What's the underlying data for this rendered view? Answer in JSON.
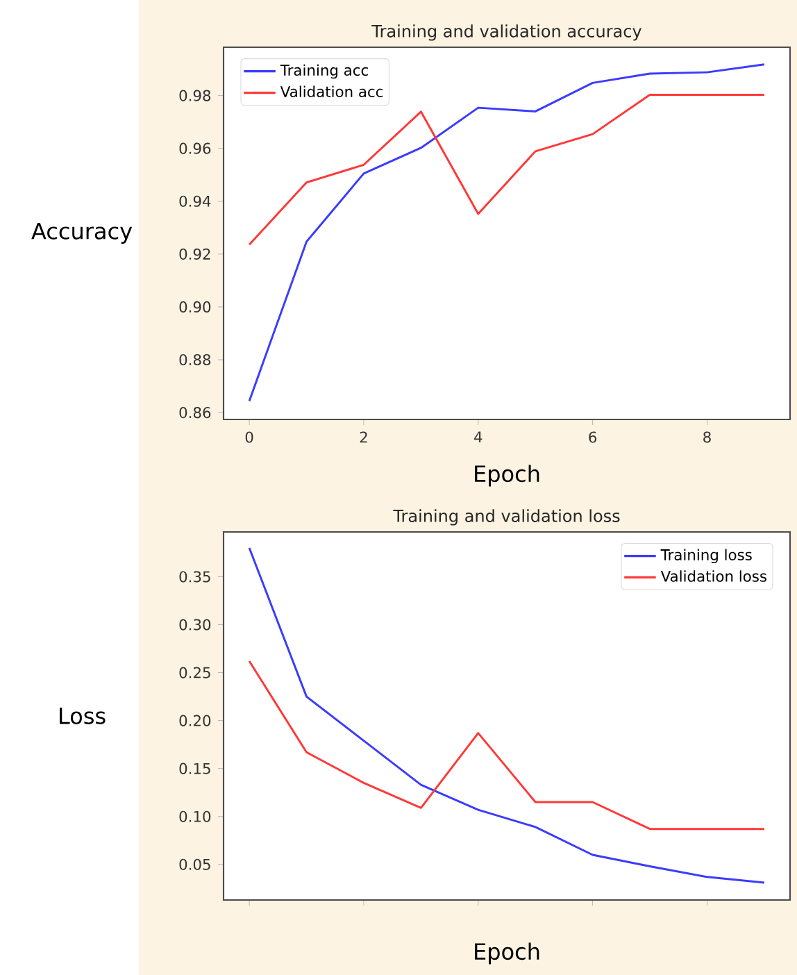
{
  "chart_data": [
    {
      "type": "line",
      "title": "Training and validation accuracy",
      "xlabel": "Epoch",
      "ylabel": "Accuracy",
      "x": [
        0,
        1,
        2,
        3,
        4,
        5,
        6,
        7,
        8,
        9
      ],
      "series": [
        {
          "name": "Training acc",
          "color": "#3b3bff",
          "values": [
            0.8644,
            0.9247,
            0.9505,
            0.9602,
            0.9754,
            0.974,
            0.9848,
            0.9883,
            0.9888,
            0.9918
          ]
        },
        {
          "name": "Validation acc",
          "color": "#ff3838",
          "values": [
            0.9236,
            0.9471,
            0.9538,
            0.9739,
            0.9352,
            0.9589,
            0.9654,
            0.9803,
            0.9803,
            0.9803
          ]
        }
      ],
      "xlim": [
        -0.45,
        9.45
      ],
      "ylim": [
        0.8574,
        0.9983
      ],
      "xticks": [
        0,
        2,
        4,
        6,
        8
      ],
      "yticks": [
        {
          "value": 0.86,
          "label": "0.86"
        },
        {
          "value": 0.88,
          "label": "0.88"
        },
        {
          "value": 0.9,
          "label": "0.90"
        },
        {
          "value": 0.92,
          "label": "0.92"
        },
        {
          "value": 0.94,
          "label": "0.94"
        },
        {
          "value": 0.96,
          "label": "0.96"
        },
        {
          "value": 0.98,
          "label": "0.98"
        }
      ],
      "legend": "top left"
    },
    {
      "type": "line",
      "title": "Training and validation loss",
      "xlabel": "Epoch",
      "ylabel": "Loss",
      "x": [
        0,
        1,
        2,
        3,
        4,
        5,
        6,
        7,
        8,
        9
      ],
      "series": [
        {
          "name": "Training loss",
          "color": "#3b3bff",
          "values": [
            0.38,
            0.225,
            0.179,
            0.133,
            0.107,
            0.089,
            0.06,
            0.048,
            0.037,
            0.031
          ]
        },
        {
          "name": "Validation loss",
          "color": "#ff3838",
          "values": [
            0.262,
            0.167,
            0.135,
            0.109,
            0.187,
            0.115,
            0.115,
            0.087,
            0.087,
            0.087
          ]
        }
      ],
      "xlim": [
        -0.45,
        9.45
      ],
      "ylim": [
        0.0129,
        0.3967
      ],
      "xticks": [
        0,
        2,
        4,
        6,
        8
      ],
      "yticks": [
        {
          "value": 0.05,
          "label": "0.05"
        },
        {
          "value": 0.1,
          "label": "0.10"
        },
        {
          "value": 0.15,
          "label": "0.15"
        },
        {
          "value": 0.2,
          "label": "0.20"
        },
        {
          "value": 0.25,
          "label": "0.25"
        },
        {
          "value": 0.3,
          "label": "0.30"
        },
        {
          "value": 0.35,
          "label": "0.35"
        }
      ],
      "tick_labels": "y",
      "legend": "top right"
    }
  ]
}
